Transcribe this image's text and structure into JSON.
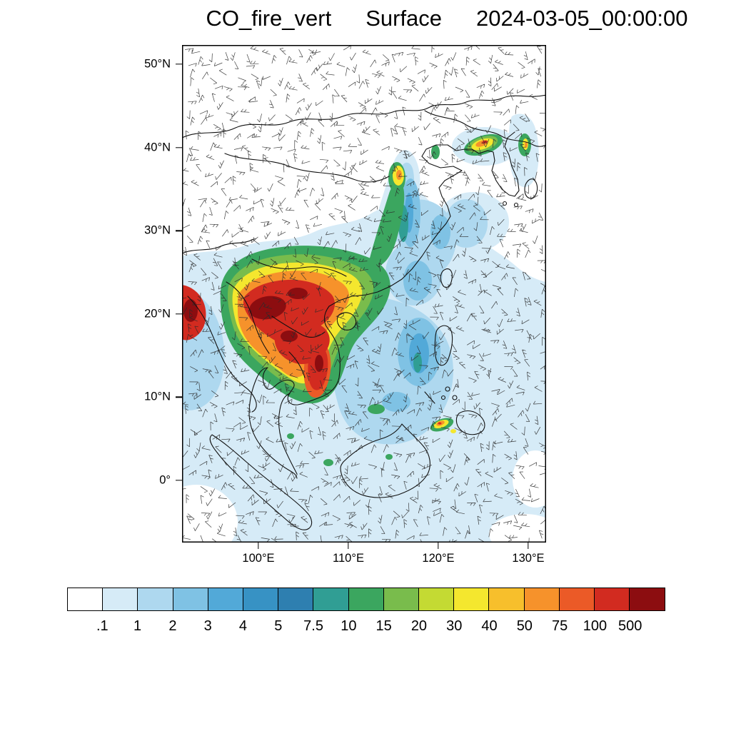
{
  "title": {
    "variable": "CO_fire_vert",
    "level": "Surface",
    "datetime": "2024-03-05_00:00:00"
  },
  "map": {
    "y_ticks": [
      "50°N",
      "40°N",
      "30°N",
      "20°N",
      "10°N",
      "0°"
    ],
    "x_ticks": [
      "100°E",
      "110°E",
      "120°E",
      "130°E"
    ]
  },
  "colorbar": {
    "labels": [
      ".1",
      "1",
      "2",
      "3",
      "4",
      "5",
      "7.5",
      "10",
      "15",
      "20",
      "30",
      "40",
      "50",
      "75",
      "100",
      "500"
    ],
    "colors": [
      "#ffffff",
      "#d6ebf7",
      "#aed8ef",
      "#7fc2e4",
      "#52a9d8",
      "#3792c4",
      "#2e7fb0",
      "#309e94",
      "#3ba65f",
      "#79bc4c",
      "#c4da33",
      "#f4e72e",
      "#f7bf2c",
      "#f6922b",
      "#eb5a27",
      "#d22b20",
      "#8c0d10"
    ]
  },
  "chart_data": {
    "type": "heatmap",
    "title": "CO_fire_vert Surface 2024-03-05_00:00:00",
    "colorbar_levels": [
      0.1,
      1,
      2,
      3,
      4,
      5,
      7.5,
      10,
      15,
      20,
      30,
      40,
      50,
      75,
      100,
      500
    ],
    "lat_ticks": [
      "50°N",
      "40°N",
      "30°N",
      "20°N",
      "10°N",
      "0°"
    ],
    "lon_ticks": [
      "100°E",
      "110°E",
      "120°E",
      "130°E"
    ],
    "overlays": [
      "filled-co-concentration-contours",
      "wind-barbs",
      "coastlines-and-borders"
    ],
    "legend_position": "bottom"
  }
}
